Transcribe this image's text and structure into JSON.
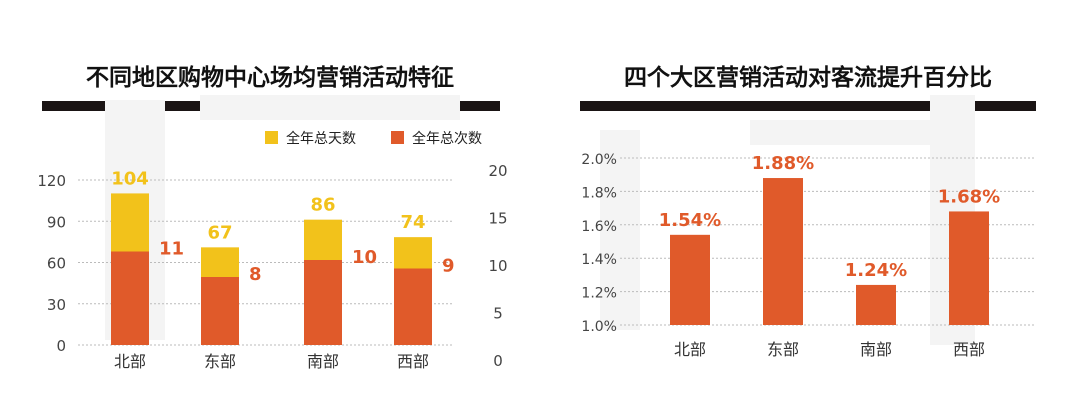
{
  "chart_data": [
    {
      "type": "bar",
      "title": "不同地区购物中心场均营销活动特征",
      "categories": [
        "北部",
        "东部",
        "南部",
        "西部"
      ],
      "series": [
        {
          "name": "全年总天数",
          "values": [
            104,
            67,
            86,
            74
          ],
          "axis": "left",
          "color": "#f2c21b"
        },
        {
          "name": "全年总次数",
          "values": [
            11,
            8,
            10,
            9
          ],
          "axis": "right",
          "color": "#e05a2a"
        }
      ],
      "y_left": {
        "ticks": [
          "0",
          "30",
          "60",
          "90",
          "120"
        ],
        "lim": [
          0,
          120
        ]
      },
      "y_right": {
        "ticks": [
          "0",
          "5",
          "10",
          "15",
          "20"
        ],
        "lim": [
          0,
          20
        ]
      },
      "legend": "top-right",
      "grid": true
    },
    {
      "type": "bar",
      "title": "四个大区营销活动对客流提升百分比",
      "categories": [
        "北部",
        "东部",
        "南部",
        "西部"
      ],
      "values": [
        1.54,
        1.88,
        1.24,
        1.68
      ],
      "labels": [
        "1.54%",
        "1.88%",
        "1.24%",
        "1.68%"
      ],
      "y": {
        "ticks": [
          "1.0%",
          "1.2%",
          "1.4%",
          "1.6%",
          "1.8%",
          "2.0%"
        ],
        "lim": [
          1.0,
          2.0
        ]
      },
      "color": "#e05a2a",
      "grid": true
    }
  ]
}
